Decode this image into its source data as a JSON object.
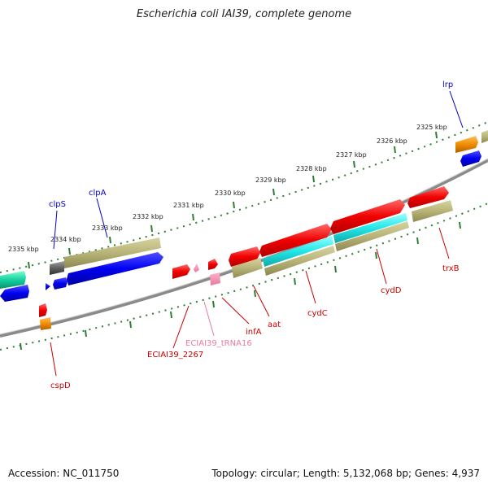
{
  "title": "Escherichia coli IAI39, complete genome",
  "accession": "Accession: NC_011750",
  "summary": "Topology: circular; Length: 5,132,068 bp; Genes: 4,937",
  "scale_labels": [
    "2335 kbp",
    "2334 kbp",
    "2333 kbp",
    "2332 kbp",
    "2331 kbp",
    "2330 kbp",
    "2329 kbp",
    "2328 kbp",
    "2327 kbp",
    "2326 kbp",
    "2325 kbp"
  ],
  "gene_labels": {
    "lrp": "lrp",
    "clpS": "clpS",
    "clpA": "clpA",
    "cspD": "cspD",
    "ECIAI39_2267": "ECIAI39_2267",
    "ECIAI39_tRNA16": "ECIAI39_tRNA16",
    "infA": "infA",
    "aat": "aat",
    "cydC": "cydC",
    "cydD": "cydD",
    "trxB": "trxB"
  },
  "colors": {
    "backbone": "#8a8a8a",
    "scale_dots": "#2e7d32",
    "forward_gene": "#e8001c",
    "reverse_gene": "#0a14e6",
    "annotation_khaki": "#b8b478",
    "annotation_cyan": "#22e6e6",
    "annotation_orange": "#f08c00",
    "annotation_green": "#14d2a0",
    "annotation_gray": "#606060",
    "label_blue": "#0000cc",
    "label_red": "#cc0000",
    "label_pink": "#e87aa0"
  }
}
